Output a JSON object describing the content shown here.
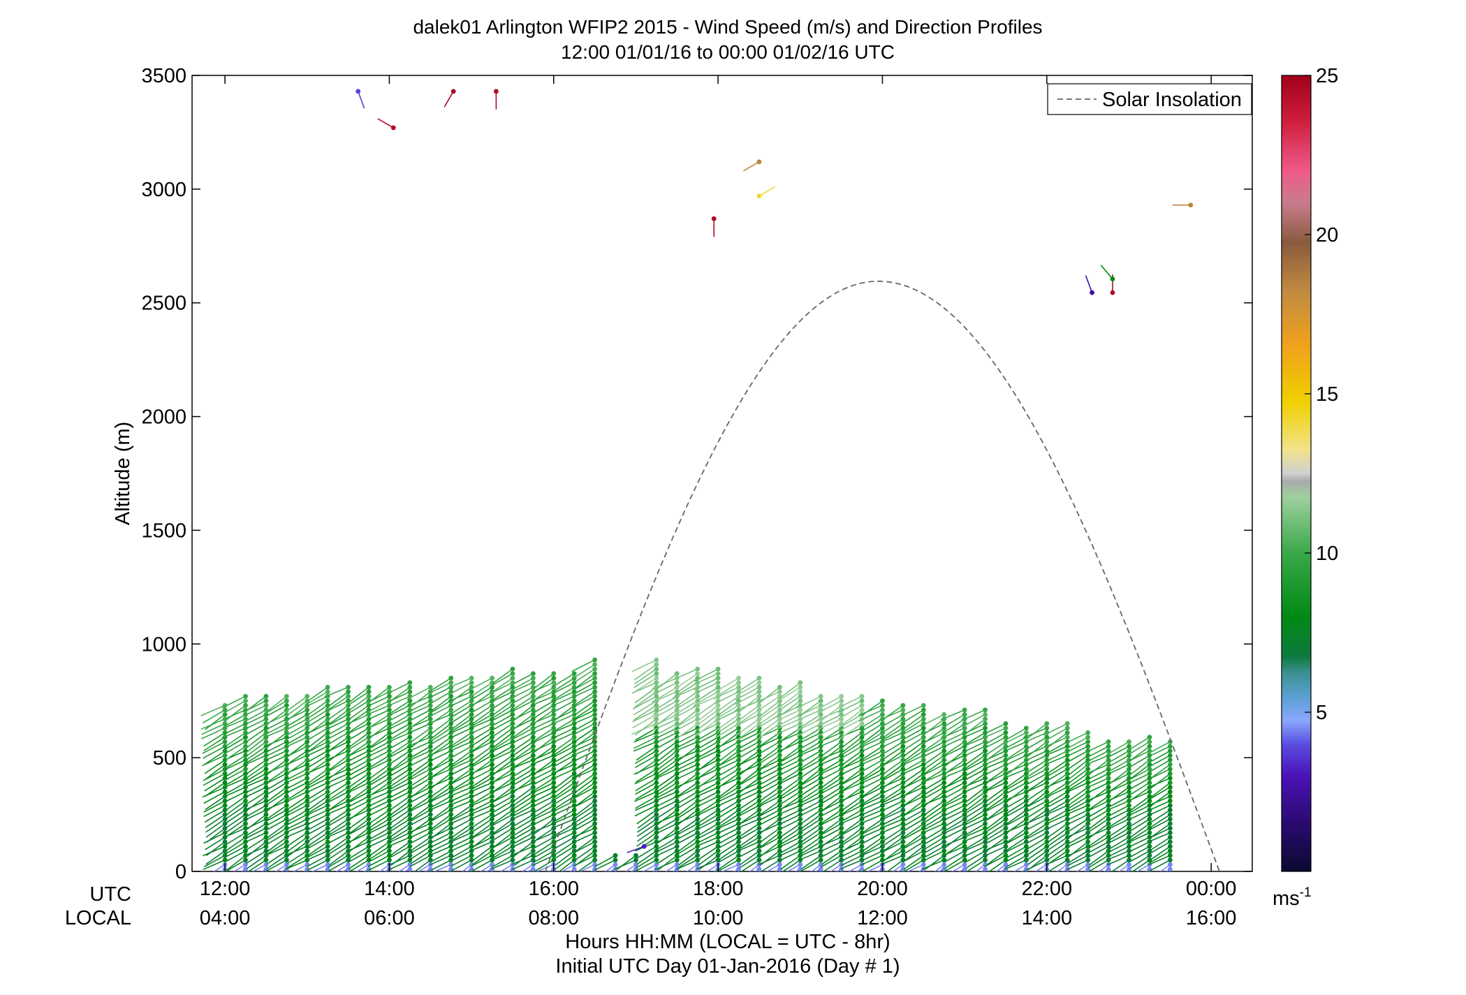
{
  "chart_data": {
    "type": "scatter",
    "title": "dalek01 Arlington WFIP2 2015 - Wind Speed (m/s) and Direction Profiles",
    "subtitle": "12:00 01/01/16 to 00:00 01/02/16  UTC",
    "ylabel": "Altitude (m)",
    "xlabel": "Hours HH:MM  (LOCAL = UTC - 8hr)",
    "xlabel2": "Initial UTC Day 01-Jan-2016 (Day # 1)",
    "row_label_utc": "UTC",
    "row_label_local": "LOCAL",
    "xlim": [
      11.6,
      24.5
    ],
    "ylim": [
      0,
      3500
    ],
    "yticks": [
      0,
      500,
      1000,
      1500,
      2000,
      2500,
      3000,
      3500
    ],
    "xticks_utc": [
      {
        "x": 12,
        "label": "12:00"
      },
      {
        "x": 14,
        "label": "14:00"
      },
      {
        "x": 16,
        "label": "16:00"
      },
      {
        "x": 18,
        "label": "18:00"
      },
      {
        "x": 20,
        "label": "20:00"
      },
      {
        "x": 22,
        "label": "22:00"
      },
      {
        "x": 24,
        "label": "00:00"
      }
    ],
    "xticks_local": [
      "04:00",
      "06:00",
      "08:00",
      "10:00",
      "12:00",
      "14:00",
      "16:00"
    ],
    "legend": {
      "label": "Solar Insolation",
      "position": "top-right",
      "style": "dashed",
      "color": "#666666"
    },
    "solar_insolation": {
      "start_x": 15.9,
      "peak_x": 19.95,
      "end_x": 24.1,
      "peak_altitude": 2595
    },
    "colorbar": {
      "min": 0,
      "max": 25,
      "ticks": [
        5,
        10,
        15,
        20,
        25
      ],
      "unit_label": "ms",
      "unit_exponent": "-1"
    },
    "profiles": {
      "time_start": 12.0,
      "time_step": 0.25,
      "count": 47,
      "gap_times": [
        16.75,
        17.0
      ],
      "altitude_step": 20,
      "top_altitude_start": 760,
      "top_altitude_mid": 930,
      "top_altitude_end": 560,
      "near_surface_speed": 4.5,
      "lower_speed": 7.5,
      "upper_speed": 10,
      "barb_direction_deg": 240
    },
    "isolated_points": [
      {
        "x": 13.62,
        "y": 3430,
        "speed": 3.8,
        "dir": 160
      },
      {
        "x": 14.05,
        "y": 3270,
        "speed": 24.5,
        "dir": 300
      },
      {
        "x": 14.78,
        "y": 3430,
        "speed": 24.5,
        "dir": 210
      },
      {
        "x": 15.3,
        "y": 3430,
        "speed": 24.5,
        "dir": 180
      },
      {
        "x": 17.95,
        "y": 2870,
        "speed": 24.5,
        "dir": 180
      },
      {
        "x": 18.5,
        "y": 3120,
        "speed": 18.5,
        "dir": 240
      },
      {
        "x": 18.5,
        "y": 2970,
        "speed": 14.2,
        "dir": 60
      },
      {
        "x": 22.55,
        "y": 2545,
        "speed": 2.5,
        "dir": 340
      },
      {
        "x": 22.8,
        "y": 2545,
        "speed": 24.5,
        "dir": 0
      },
      {
        "x": 22.8,
        "y": 2605,
        "speed": 8,
        "dir": 320
      },
      {
        "x": 23.75,
        "y": 2930,
        "speed": 18.5,
        "dir": 270
      },
      {
        "x": 17.1,
        "y": 110,
        "speed": 3.2,
        "dir": 250
      }
    ]
  }
}
